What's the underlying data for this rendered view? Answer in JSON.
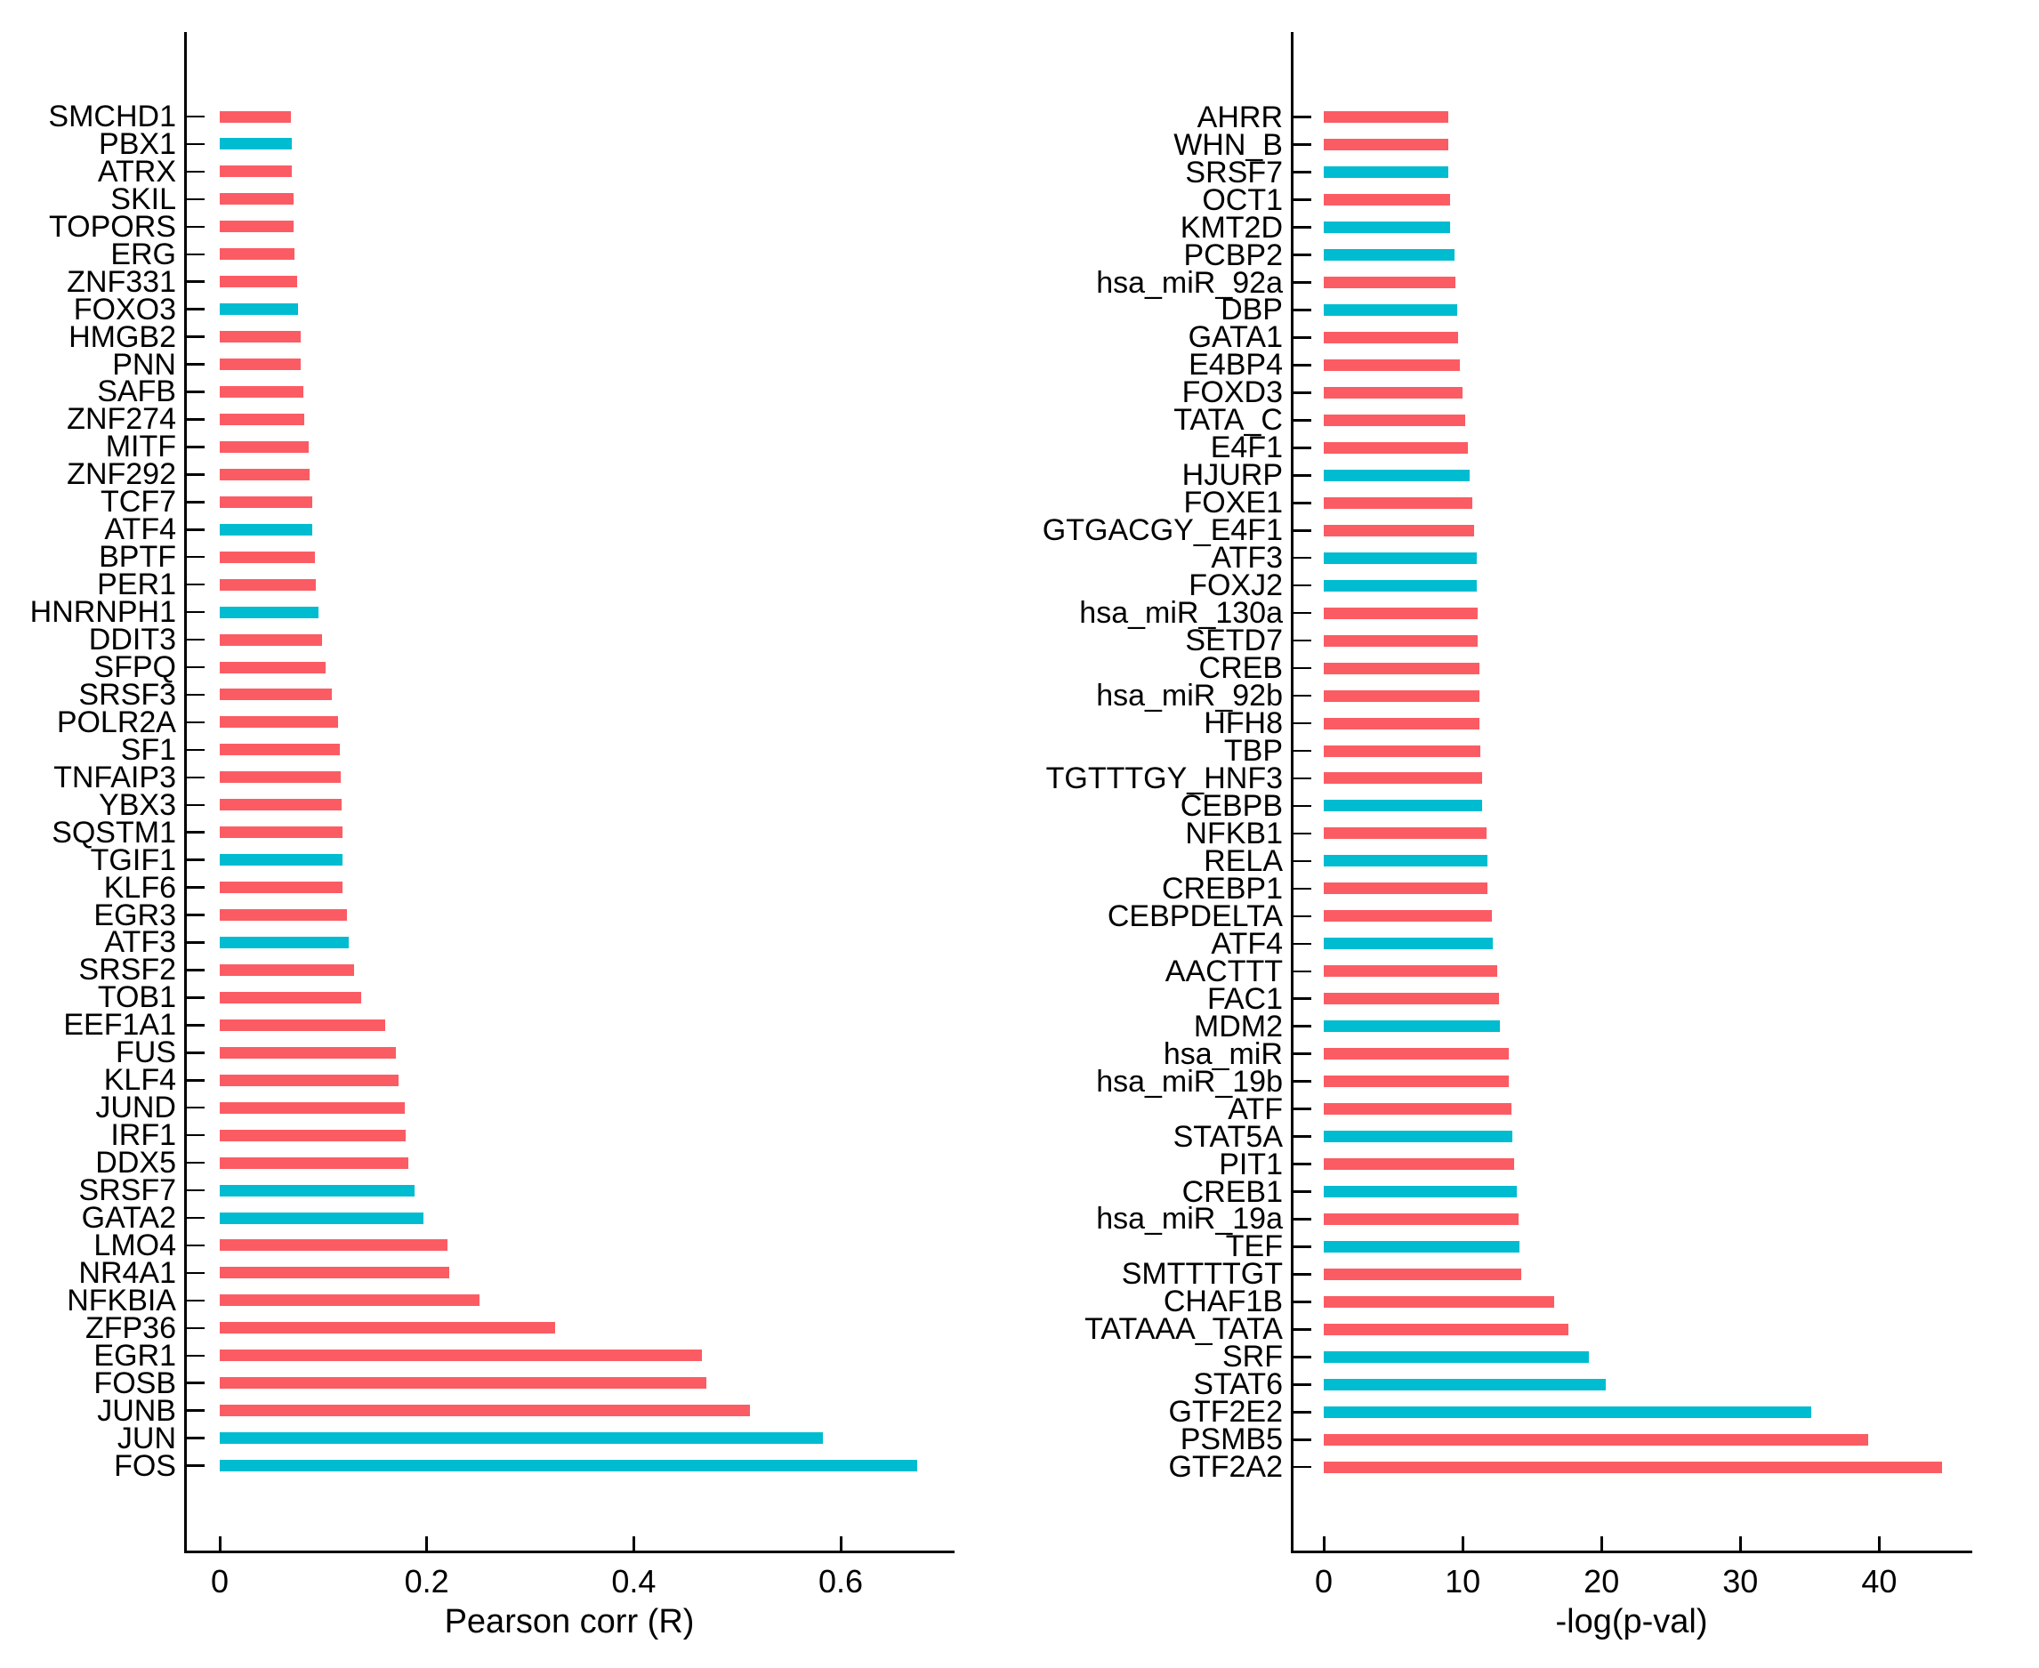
{
  "chart_data": [
    {
      "type": "bar",
      "orientation": "horizontal",
      "panel": "left",
      "title": "",
      "xlabel": "Pearson corr (R)",
      "ylabel": "",
      "xlim": [
        0,
        0.71
      ],
      "xticks": [
        0,
        0.2,
        0.4,
        0.6
      ],
      "xtick_labels": [
        "0",
        "0.2",
        "0.4",
        "0.6"
      ],
      "grid": false,
      "legend_position": "none",
      "palette": {
        "red": "#fb5c64",
        "blue": "#00bcd0"
      },
      "bars": [
        {
          "label": "SMCHD1",
          "value": 0.069,
          "color": "red"
        },
        {
          "label": "PBX1",
          "value": 0.07,
          "color": "blue"
        },
        {
          "label": "ATRX",
          "value": 0.07,
          "color": "red"
        },
        {
          "label": "SKIL",
          "value": 0.071,
          "color": "red"
        },
        {
          "label": "TOPORS",
          "value": 0.071,
          "color": "red"
        },
        {
          "label": "ERG",
          "value": 0.072,
          "color": "red"
        },
        {
          "label": "ZNF331",
          "value": 0.075,
          "color": "red"
        },
        {
          "label": "FOXO3",
          "value": 0.076,
          "color": "blue"
        },
        {
          "label": "HMGB2",
          "value": 0.078,
          "color": "red"
        },
        {
          "label": "PNN",
          "value": 0.078,
          "color": "red"
        },
        {
          "label": "SAFB",
          "value": 0.081,
          "color": "red"
        },
        {
          "label": "ZNF274",
          "value": 0.082,
          "color": "red"
        },
        {
          "label": "MITF",
          "value": 0.086,
          "color": "red"
        },
        {
          "label": "ZNF292",
          "value": 0.087,
          "color": "red"
        },
        {
          "label": "TCF7",
          "value": 0.089,
          "color": "red"
        },
        {
          "label": "ATF4",
          "value": 0.089,
          "color": "blue"
        },
        {
          "label": "BPTF",
          "value": 0.092,
          "color": "red"
        },
        {
          "label": "PER1",
          "value": 0.093,
          "color": "red"
        },
        {
          "label": "HNRNPH1",
          "value": 0.095,
          "color": "blue"
        },
        {
          "label": "DDIT3",
          "value": 0.099,
          "color": "red"
        },
        {
          "label": "SFPQ",
          "value": 0.102,
          "color": "red"
        },
        {
          "label": "SRSF3",
          "value": 0.108,
          "color": "red"
        },
        {
          "label": "POLR2A",
          "value": 0.114,
          "color": "red"
        },
        {
          "label": "SF1",
          "value": 0.116,
          "color": "red"
        },
        {
          "label": "TNFAIP3",
          "value": 0.117,
          "color": "red"
        },
        {
          "label": "YBX3",
          "value": 0.118,
          "color": "red"
        },
        {
          "label": "SQSTM1",
          "value": 0.119,
          "color": "red"
        },
        {
          "label": "TGIF1",
          "value": 0.119,
          "color": "blue"
        },
        {
          "label": "KLF6",
          "value": 0.119,
          "color": "red"
        },
        {
          "label": "EGR3",
          "value": 0.123,
          "color": "red"
        },
        {
          "label": "ATF3",
          "value": 0.125,
          "color": "blue"
        },
        {
          "label": "SRSF2",
          "value": 0.13,
          "color": "red"
        },
        {
          "label": "TOB1",
          "value": 0.137,
          "color": "red"
        },
        {
          "label": "EEF1A1",
          "value": 0.16,
          "color": "red"
        },
        {
          "label": "FUS",
          "value": 0.17,
          "color": "red"
        },
        {
          "label": "KLF4",
          "value": 0.173,
          "color": "red"
        },
        {
          "label": "JUND",
          "value": 0.179,
          "color": "red"
        },
        {
          "label": "IRF1",
          "value": 0.18,
          "color": "red"
        },
        {
          "label": "DDX5",
          "value": 0.182,
          "color": "red"
        },
        {
          "label": "SRSF7",
          "value": 0.188,
          "color": "blue"
        },
        {
          "label": "GATA2",
          "value": 0.197,
          "color": "blue"
        },
        {
          "label": "LMO4",
          "value": 0.22,
          "color": "red"
        },
        {
          "label": "NR4A1",
          "value": 0.222,
          "color": "red"
        },
        {
          "label": "NFKBIA",
          "value": 0.251,
          "color": "red"
        },
        {
          "label": "ZFP36",
          "value": 0.324,
          "color": "red"
        },
        {
          "label": "EGR1",
          "value": 0.466,
          "color": "red"
        },
        {
          "label": "FOSB",
          "value": 0.47,
          "color": "red"
        },
        {
          "label": "JUNB",
          "value": 0.512,
          "color": "red"
        },
        {
          "label": "JUN",
          "value": 0.583,
          "color": "blue"
        },
        {
          "label": "FOS",
          "value": 0.674,
          "color": "blue"
        }
      ]
    },
    {
      "type": "bar",
      "orientation": "horizontal",
      "panel": "right",
      "title": "",
      "xlabel": "-log(p-val)",
      "ylabel": "",
      "xlim": [
        0,
        46.7
      ],
      "xticks": [
        0,
        10,
        20,
        30,
        40
      ],
      "xtick_labels": [
        "0",
        "10",
        "20",
        "30",
        "40"
      ],
      "grid": false,
      "legend_position": "none",
      "palette": {
        "red": "#fb5c64",
        "blue": "#00bcd0"
      },
      "bars": [
        {
          "label": "AHRR",
          "value": 9.0,
          "color": "red"
        },
        {
          "label": "WHN_B",
          "value": 9.0,
          "color": "red"
        },
        {
          "label": "SRSF7",
          "value": 9.0,
          "color": "blue"
        },
        {
          "label": "OCT1",
          "value": 9.1,
          "color": "red"
        },
        {
          "label": "KMT2D",
          "value": 9.1,
          "color": "blue"
        },
        {
          "label": "PCBP2",
          "value": 9.4,
          "color": "blue"
        },
        {
          "label": "hsa_miR_92a",
          "value": 9.5,
          "color": "red"
        },
        {
          "label": "DBP",
          "value": 9.6,
          "color": "blue"
        },
        {
          "label": "GATA1",
          "value": 9.7,
          "color": "red"
        },
        {
          "label": "E4BP4",
          "value": 9.8,
          "color": "red"
        },
        {
          "label": "FOXD3",
          "value": 10.0,
          "color": "red"
        },
        {
          "label": "TATA_C",
          "value": 10.2,
          "color": "red"
        },
        {
          "label": "E4F1",
          "value": 10.4,
          "color": "red"
        },
        {
          "label": "HJURP",
          "value": 10.5,
          "color": "blue"
        },
        {
          "label": "FOXE1",
          "value": 10.7,
          "color": "red"
        },
        {
          "label": "GTGACGY_E4F1",
          "value": 10.8,
          "color": "red"
        },
        {
          "label": "ATF3",
          "value": 11.0,
          "color": "blue"
        },
        {
          "label": "FOXJ2",
          "value": 11.0,
          "color": "blue"
        },
        {
          "label": "hsa_miR_130a",
          "value": 11.1,
          "color": "red"
        },
        {
          "label": "SETD7",
          "value": 11.1,
          "color": "red"
        },
        {
          "label": "CREB",
          "value": 11.2,
          "color": "red"
        },
        {
          "label": "hsa_miR_92b",
          "value": 11.2,
          "color": "red"
        },
        {
          "label": "HFH8",
          "value": 11.2,
          "color": "red"
        },
        {
          "label": "TBP",
          "value": 11.3,
          "color": "red"
        },
        {
          "label": "TGTTTGY_HNF3",
          "value": 11.4,
          "color": "red"
        },
        {
          "label": "CEBPB",
          "value": 11.4,
          "color": "blue"
        },
        {
          "label": "NFKB1",
          "value": 11.7,
          "color": "red"
        },
        {
          "label": "RELA",
          "value": 11.8,
          "color": "blue"
        },
        {
          "label": "CREBP1",
          "value": 11.8,
          "color": "red"
        },
        {
          "label": "CEBPDELTA",
          "value": 12.1,
          "color": "red"
        },
        {
          "label": "ATF4",
          "value": 12.2,
          "color": "blue"
        },
        {
          "label": "AACTTT",
          "value": 12.5,
          "color": "red"
        },
        {
          "label": "FAC1",
          "value": 12.6,
          "color": "red"
        },
        {
          "label": "MDM2",
          "value": 12.7,
          "color": "blue"
        },
        {
          "label": "hsa_miR",
          "value": 13.3,
          "color": "red"
        },
        {
          "label": "hsa_miR_19b",
          "value": 13.3,
          "color": "red"
        },
        {
          "label": "ATF",
          "value": 13.5,
          "color": "red"
        },
        {
          "label": "STAT5A",
          "value": 13.6,
          "color": "blue"
        },
        {
          "label": "PIT1",
          "value": 13.7,
          "color": "red"
        },
        {
          "label": "CREB1",
          "value": 13.9,
          "color": "blue"
        },
        {
          "label": "hsa_miR_19a",
          "value": 14.0,
          "color": "red"
        },
        {
          "label": "TEF",
          "value": 14.1,
          "color": "blue"
        },
        {
          "label": "SMTTTTGT",
          "value": 14.2,
          "color": "red"
        },
        {
          "label": "CHAF1B",
          "value": 16.6,
          "color": "red"
        },
        {
          "label": "TATAAA_TATA",
          "value": 17.6,
          "color": "red"
        },
        {
          "label": "SRF",
          "value": 19.1,
          "color": "blue"
        },
        {
          "label": "STAT6",
          "value": 20.3,
          "color": "blue"
        },
        {
          "label": "GTF2E2",
          "value": 35.1,
          "color": "blue"
        },
        {
          "label": "PSMB5",
          "value": 39.2,
          "color": "red"
        },
        {
          "label": "GTF2A2",
          "value": 44.5,
          "color": "red"
        }
      ]
    }
  ]
}
